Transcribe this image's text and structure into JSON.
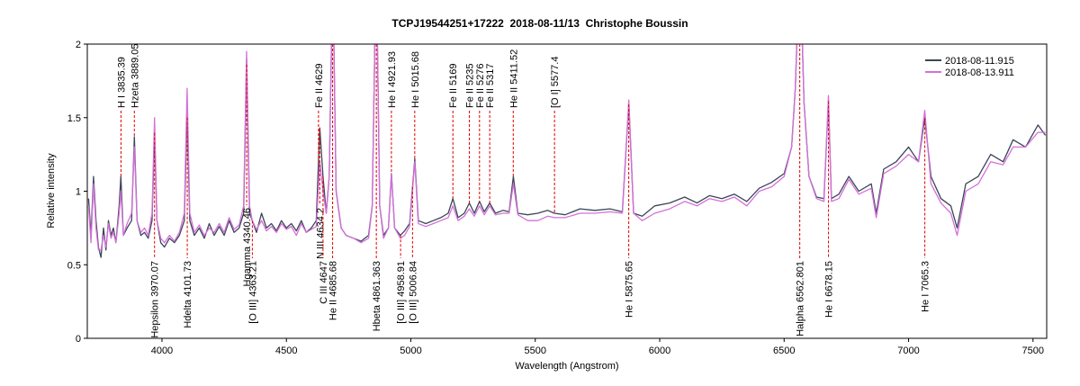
{
  "chart_data": {
    "type": "line",
    "title": "TCPJ19544251+17222  2018-08-11/13  Christophe Boussin",
    "x_label": "Wavelength (Angstrom)",
    "y_label": "Relative intensity",
    "xlim": [
      3700,
      7555
    ],
    "ylim": [
      0,
      2
    ],
    "xticks": [
      4000,
      4500,
      5000,
      5500,
      6000,
      6500,
      7000,
      7500
    ],
    "yticks": [
      0,
      0.5,
      1,
      1.5,
      2
    ],
    "legend": "upper right",
    "x": [
      3705,
      3715,
      3725,
      3735,
      3745,
      3755,
      3765,
      3775,
      3785,
      3795,
      3805,
      3815,
      3828,
      3835,
      3845,
      3860,
      3878,
      3889,
      3900,
      3915,
      3930,
      3945,
      3960,
      3970,
      3980,
      3995,
      4010,
      4030,
      4050,
      4070,
      4090,
      4101,
      4112,
      4130,
      4150,
      4170,
      4190,
      4210,
      4230,
      4250,
      4270,
      4290,
      4310,
      4328,
      4340,
      4352,
      4363,
      4380,
      4400,
      4420,
      4440,
      4460,
      4480,
      4500,
      4520,
      4540,
      4560,
      4580,
      4600,
      4620,
      4634,
      4647,
      4660,
      4672,
      4686,
      4700,
      4720,
      4740,
      4770,
      4800,
      4830,
      4845,
      4861,
      4875,
      4890,
      4910,
      4922,
      4935,
      4958,
      4975,
      4995,
      5016,
      5030,
      5060,
      5090,
      5120,
      5150,
      5169,
      5190,
      5215,
      5235,
      5255,
      5276,
      5295,
      5317,
      5340,
      5370,
      5395,
      5412,
      5430,
      5470,
      5510,
      5550,
      5577,
      5620,
      5680,
      5740,
      5800,
      5850,
      5876,
      5895,
      5930,
      5980,
      6040,
      6100,
      6150,
      6200,
      6250,
      6300,
      6350,
      6400,
      6450,
      6500,
      6530,
      6545,
      6563,
      6580,
      6600,
      6630,
      6660,
      6678,
      6690,
      6720,
      6760,
      6800,
      6850,
      6870,
      6900,
      6950,
      7000,
      7040,
      7065,
      7090,
      7130,
      7170,
      7195,
      7230,
      7280,
      7330,
      7380,
      7420,
      7470,
      7520,
      7550
    ],
    "series": [
      {
        "name": "2018-08-11.915",
        "color": "#3b4656",
        "values": [
          0.95,
          0.7,
          1.1,
          0.8,
          0.62,
          0.55,
          0.75,
          0.6,
          0.8,
          0.7,
          0.75,
          0.65,
          0.9,
          1.1,
          0.7,
          0.75,
          0.8,
          1.37,
          0.8,
          0.7,
          0.72,
          0.68,
          0.8,
          1.4,
          0.8,
          0.65,
          0.62,
          0.68,
          0.65,
          0.7,
          0.8,
          1.55,
          0.8,
          0.7,
          0.75,
          0.68,
          0.78,
          0.7,
          0.76,
          0.7,
          0.8,
          0.72,
          0.75,
          0.85,
          1.9,
          0.85,
          0.8,
          0.72,
          0.85,
          0.75,
          0.78,
          0.73,
          0.8,
          0.75,
          0.78,
          0.73,
          0.8,
          0.72,
          0.75,
          0.8,
          1.43,
          1.1,
          0.85,
          1.1,
          2.5,
          1.0,
          0.75,
          0.7,
          0.68,
          0.66,
          0.7,
          0.9,
          2.6,
          0.9,
          0.7,
          0.75,
          1.12,
          0.75,
          0.7,
          0.73,
          0.78,
          1.22,
          0.8,
          0.78,
          0.8,
          0.82,
          0.85,
          0.95,
          0.82,
          0.85,
          0.92,
          0.85,
          0.93,
          0.86,
          0.92,
          0.85,
          0.87,
          0.86,
          1.1,
          0.85,
          0.84,
          0.85,
          0.87,
          0.85,
          0.84,
          0.88,
          0.87,
          0.88,
          0.86,
          1.6,
          0.85,
          0.83,
          0.9,
          0.92,
          0.96,
          0.92,
          0.97,
          0.95,
          0.98,
          0.93,
          1.02,
          1.06,
          1.12,
          1.3,
          1.7,
          2.6,
          1.6,
          1.1,
          0.96,
          0.95,
          1.62,
          0.95,
          0.98,
          1.1,
          1.0,
          1.05,
          0.85,
          1.15,
          1.2,
          1.3,
          1.2,
          1.5,
          1.1,
          0.95,
          0.9,
          0.75,
          1.05,
          1.1,
          1.25,
          1.2,
          1.35,
          1.3,
          1.45,
          1.38
        ]
      },
      {
        "name": "2018-08-13.911",
        "color": "#d46fdb",
        "values": [
          0.9,
          0.65,
          1.05,
          0.75,
          0.6,
          0.6,
          0.7,
          0.62,
          0.78,
          0.68,
          0.72,
          0.65,
          0.85,
          1.0,
          0.7,
          0.78,
          0.85,
          1.3,
          0.8,
          0.72,
          0.75,
          0.7,
          0.85,
          1.5,
          0.8,
          0.68,
          0.65,
          0.7,
          0.66,
          0.72,
          0.85,
          1.7,
          0.85,
          0.72,
          0.77,
          0.7,
          0.75,
          0.72,
          0.78,
          0.72,
          0.82,
          0.74,
          0.77,
          0.9,
          1.95,
          0.9,
          0.8,
          0.74,
          0.8,
          0.73,
          0.76,
          0.72,
          0.78,
          0.74,
          0.76,
          0.7,
          0.78,
          0.72,
          0.74,
          0.76,
          1.2,
          1.0,
          0.85,
          1.1,
          2.5,
          1.0,
          0.75,
          0.7,
          0.68,
          0.65,
          0.68,
          0.9,
          2.6,
          0.9,
          0.68,
          0.75,
          1.12,
          0.75,
          0.68,
          0.7,
          0.76,
          1.2,
          0.78,
          0.76,
          0.78,
          0.8,
          0.82,
          0.9,
          0.8,
          0.83,
          0.88,
          0.83,
          0.9,
          0.84,
          0.9,
          0.84,
          0.85,
          0.85,
          1.05,
          0.84,
          0.8,
          0.8,
          0.83,
          0.82,
          0.82,
          0.85,
          0.85,
          0.86,
          0.85,
          1.62,
          0.85,
          0.8,
          0.85,
          0.88,
          0.93,
          0.9,
          0.95,
          0.93,
          0.96,
          0.9,
          1.0,
          1.03,
          1.1,
          1.3,
          1.7,
          2.6,
          1.6,
          1.1,
          0.95,
          0.93,
          1.65,
          0.93,
          0.95,
          1.08,
          0.98,
          1.02,
          0.82,
          1.12,
          1.17,
          1.25,
          1.2,
          1.55,
          1.05,
          0.92,
          0.85,
          0.7,
          1.0,
          1.05,
          1.2,
          1.18,
          1.3,
          1.3,
          1.4,
          1.4
        ]
      }
    ],
    "annotations": [
      {
        "label": "H I 3835.39",
        "x": 3835.39,
        "position": "top"
      },
      {
        "label": "Hzeta 3889.05",
        "x": 3889.05,
        "position": "top"
      },
      {
        "label": "Hepsilon 3970.07",
        "x": 3970.07,
        "position": "bottom"
      },
      {
        "label": "Hdelta 4101.73",
        "x": 4101.73,
        "position": "bottom"
      },
      {
        "label": "Hgamma 4340.46",
        "x": 4340.46,
        "position": "middle"
      },
      {
        "label": "[O III] 4363.21",
        "x": 4363.21,
        "position": "bottom"
      },
      {
        "label": "Fe II 4629",
        "x": 4629,
        "position": "top"
      },
      {
        "label": "N III 4634.2",
        "x": 4634.2,
        "position": "middle"
      },
      {
        "label": "C III 4647",
        "x": 4647,
        "position": "bottom"
      },
      {
        "label": "He II 4685.68",
        "x": 4685.68,
        "position": "bottom"
      },
      {
        "label": "Hbeta 4861.363",
        "x": 4861.363,
        "position": "bottom"
      },
      {
        "label": "He I 4921.93",
        "x": 4921.93,
        "position": "top"
      },
      {
        "label": "[O III] 4958.91",
        "x": 4958.91,
        "position": "bottom"
      },
      {
        "label": "[O III] 5006.84",
        "x": 5006.84,
        "position": "bottom"
      },
      {
        "label": "He I 5015.68",
        "x": 5015.68,
        "position": "top"
      },
      {
        "label": "Fe II 5169",
        "x": 5169,
        "position": "top"
      },
      {
        "label": "Fe II 5235",
        "x": 5235,
        "position": "top"
      },
      {
        "label": "Fe II 5276",
        "x": 5276,
        "position": "top"
      },
      {
        "label": "Fe II 5317",
        "x": 5317,
        "position": "top"
      },
      {
        "label": "He II 5411.52",
        "x": 5411.52,
        "position": "top"
      },
      {
        "label": "[O I] 5577.4",
        "x": 5577.4,
        "position": "top"
      },
      {
        "label": "He I 5875.65",
        "x": 5875.65,
        "position": "bottom"
      },
      {
        "label": "Halpha 6562.801",
        "x": 6562.801,
        "position": "bottom"
      },
      {
        "label": "He I 6678.15",
        "x": 6678.15,
        "position": "bottom"
      },
      {
        "label": "He I 7065.3",
        "x": 7065.3,
        "position": "bottom"
      }
    ]
  }
}
